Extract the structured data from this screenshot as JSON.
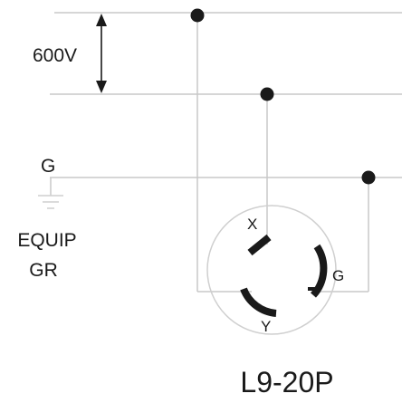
{
  "diagram": {
    "voltage_label": "600V",
    "ground_line_label": "G",
    "equipment_ground_label_line1": "EQUIP",
    "equipment_ground_label_line2": "GR",
    "terminal_x_label": "X",
    "terminal_y_label": "Y",
    "terminal_g_label": "G",
    "plug_model_label": "L9-20P"
  },
  "colors": {
    "wire": "#c8c8c8",
    "ink": "#1a1a1a",
    "outline": "#cfcfcf"
  }
}
